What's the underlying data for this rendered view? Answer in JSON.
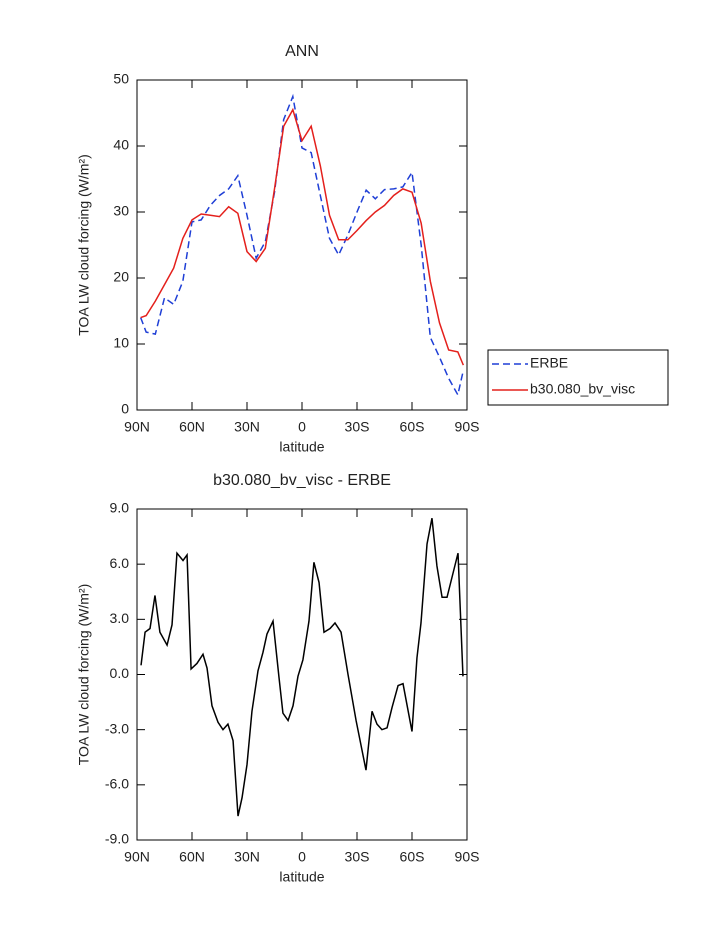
{
  "chart_data": [
    {
      "type": "line",
      "title": "ANN",
      "xlabel": "latitude",
      "ylabel": "TOA LW cloud forcing (W/m²)",
      "x": [
        88,
        85,
        80,
        75,
        70,
        65,
        60,
        55,
        50,
        45,
        40,
        35,
        30,
        25,
        20,
        15,
        10,
        5,
        0,
        -5,
        -10,
        -15,
        -20,
        -25,
        -30,
        -35,
        -40,
        -45,
        -50,
        -55,
        -60,
        -65,
        -70,
        -75,
        -80,
        -85,
        -88
      ],
      "series": [
        {
          "name": "ERBE",
          "color": "#1f3fd6",
          "linestyle": "dashed",
          "values": [
            14,
            11.8,
            11.5,
            17,
            16,
            19.5,
            28.5,
            28.8,
            31,
            32.5,
            33.5,
            35.5,
            29.5,
            23,
            25.5,
            33,
            44,
            47.5,
            39.7,
            39,
            32.5,
            26,
            23.5,
            26.5,
            30,
            33.3,
            32,
            33.4,
            33.5,
            33.8,
            36,
            25,
            11,
            8,
            4.8,
            2.3,
            6
          ]
        },
        {
          "name": "b30.080_bv_visc",
          "color": "#e4201c",
          "linestyle": "solid",
          "values": [
            14,
            14.3,
            16.5,
            19,
            21.5,
            26,
            28.8,
            29.7,
            29.5,
            29.3,
            30.8,
            29.8,
            24,
            22.5,
            24.5,
            33.5,
            43,
            45.5,
            40.8,
            43,
            37,
            29.5,
            25.8,
            25.8,
            27.2,
            28.7,
            30,
            31,
            32.5,
            33.5,
            33,
            28.3,
            19.5,
            13.2,
            9.1,
            8.8,
            6.8
          ]
        }
      ],
      "xlim": [
        90,
        -90
      ],
      "xticks": [
        {
          "value": 90,
          "label": "90N"
        },
        {
          "value": 60,
          "label": "60N"
        },
        {
          "value": 30,
          "label": "30N"
        },
        0,
        {
          "value": -30,
          "label": "30S"
        },
        {
          "value": -60,
          "label": "60S"
        },
        {
          "value": -90,
          "label": "90S"
        }
      ],
      "ylim": [
        0,
        50
      ],
      "yticks": [
        0,
        10,
        20,
        30,
        40,
        50
      ],
      "legend": "right"
    },
    {
      "type": "line",
      "title": "b30.080_bv_visc - ERBE",
      "xlabel": "latitude",
      "ylabel": "TOA LW cloud forcing (W/m²)",
      "x": [
        87.8,
        85.6,
        82.9,
        80.2,
        77.5,
        73.6,
        70.9,
        68.2,
        64.9,
        62.7,
        60.5,
        57.3,
        54.0,
        51.8,
        49.1,
        45.8,
        43.1,
        40.4,
        37.6,
        34.9,
        32.7,
        30.0,
        27.3,
        24.0,
        21.3,
        19.1,
        15.8,
        12.5,
        10.4,
        7.6,
        4.9,
        2.2,
        -0.5,
        -3.8,
        -6.5,
        -9.3,
        -12.0,
        -15.3,
        -18.0,
        -21.3,
        -25.1,
        -29.5,
        -34.9,
        -38.2,
        -40.9,
        -43.6,
        -46.4,
        -49.1,
        -52.4,
        -55.1,
        -60.0,
        -62.7,
        -64.9,
        -68.2,
        -70.9,
        -73.6,
        -76.4,
        -79.1,
        -85.1,
        -87.8
      ],
      "series": [
        {
          "name": "b30.080_bv_visc - ERBE",
          "color": "#000000",
          "linestyle": "solid",
          "values": [
            0.5,
            2.3,
            2.5,
            4.3,
            2.3,
            1.6,
            2.7,
            6.6,
            6.2,
            6.5,
            0.3,
            0.6,
            1.1,
            0.35,
            -1.7,
            -2.6,
            -3.0,
            -2.7,
            -3.6,
            -7.7,
            -6.7,
            -4.9,
            -2.0,
            0.2,
            1.2,
            2.2,
            2.9,
            -0.2,
            -2.1,
            -2.5,
            -1.7,
            -0.1,
            0.8,
            2.9,
            6.1,
            5.0,
            2.3,
            2.5,
            2.8,
            2.3,
            0,
            -2.5,
            -5.2,
            -2.0,
            -2.7,
            -3.0,
            -2.9,
            -1.8,
            -0.6,
            -0.5,
            -3.1,
            0.9,
            2.8,
            7.1,
            8.5,
            5.9,
            4.2,
            4.2,
            6.6,
            -0.1
          ]
        }
      ],
      "xlim": [
        90,
        -90
      ],
      "xticks": [
        {
          "value": 90,
          "label": "90N"
        },
        {
          "value": 60,
          "label": "60N"
        },
        {
          "value": 30,
          "label": "30N"
        },
        0,
        {
          "value": -30,
          "label": "30S"
        },
        {
          "value": -60,
          "label": "60S"
        },
        {
          "value": -90,
          "label": "90S"
        }
      ],
      "ylim": [
        -9,
        9
      ],
      "yticks": [
        {
          "value": -9,
          "label": "-9.0"
        },
        {
          "value": -6,
          "label": "-6.0"
        },
        {
          "value": -3,
          "label": "-3.0"
        },
        {
          "value": 0,
          "label": "0.0"
        },
        {
          "value": 3,
          "label": "3.0"
        },
        {
          "value": 6,
          "label": "6.0"
        },
        {
          "value": 9,
          "label": "9.0"
        }
      ]
    }
  ]
}
